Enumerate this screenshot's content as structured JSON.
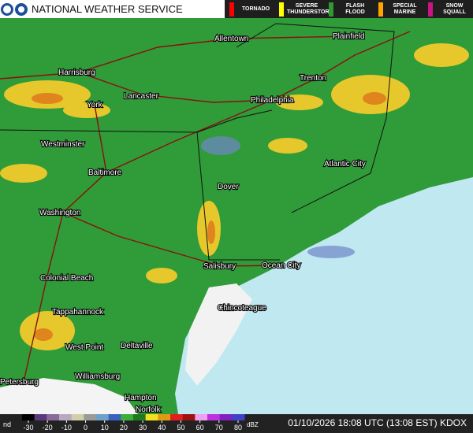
{
  "header": {
    "title": "NATIONAL WEATHER SERVICE"
  },
  "warnings": [
    "TORNADO",
    "SEVERE THUNDERSTORM",
    "FLASH FLOOD",
    "SPECIAL MARINE",
    "SNOW SQUALL"
  ],
  "cities": [
    "Allentown",
    "Plainfield",
    "Harrisburg",
    "Trenton",
    "Philadelphia",
    "York",
    "Lancaster",
    "Westminster",
    "Atlantic City",
    "Baltimore",
    "Dover",
    "Washington",
    "Salisbury",
    "Ocean City",
    "Colonial Beach",
    "Tappahannock",
    "Chincoteague",
    "West Point",
    "Deltaville",
    "Williamsburg",
    "Petersburg",
    "Hampton",
    "Norfolk"
  ],
  "scale": {
    "no_data": "nd",
    "ticks": [
      -30,
      -20,
      -10,
      0,
      10,
      20,
      30,
      40,
      50,
      60,
      70,
      80
    ],
    "unit": "dBZ"
  },
  "timestamp": "01/10/2026 18:08 UTC (13:08 EST) KDOX"
}
